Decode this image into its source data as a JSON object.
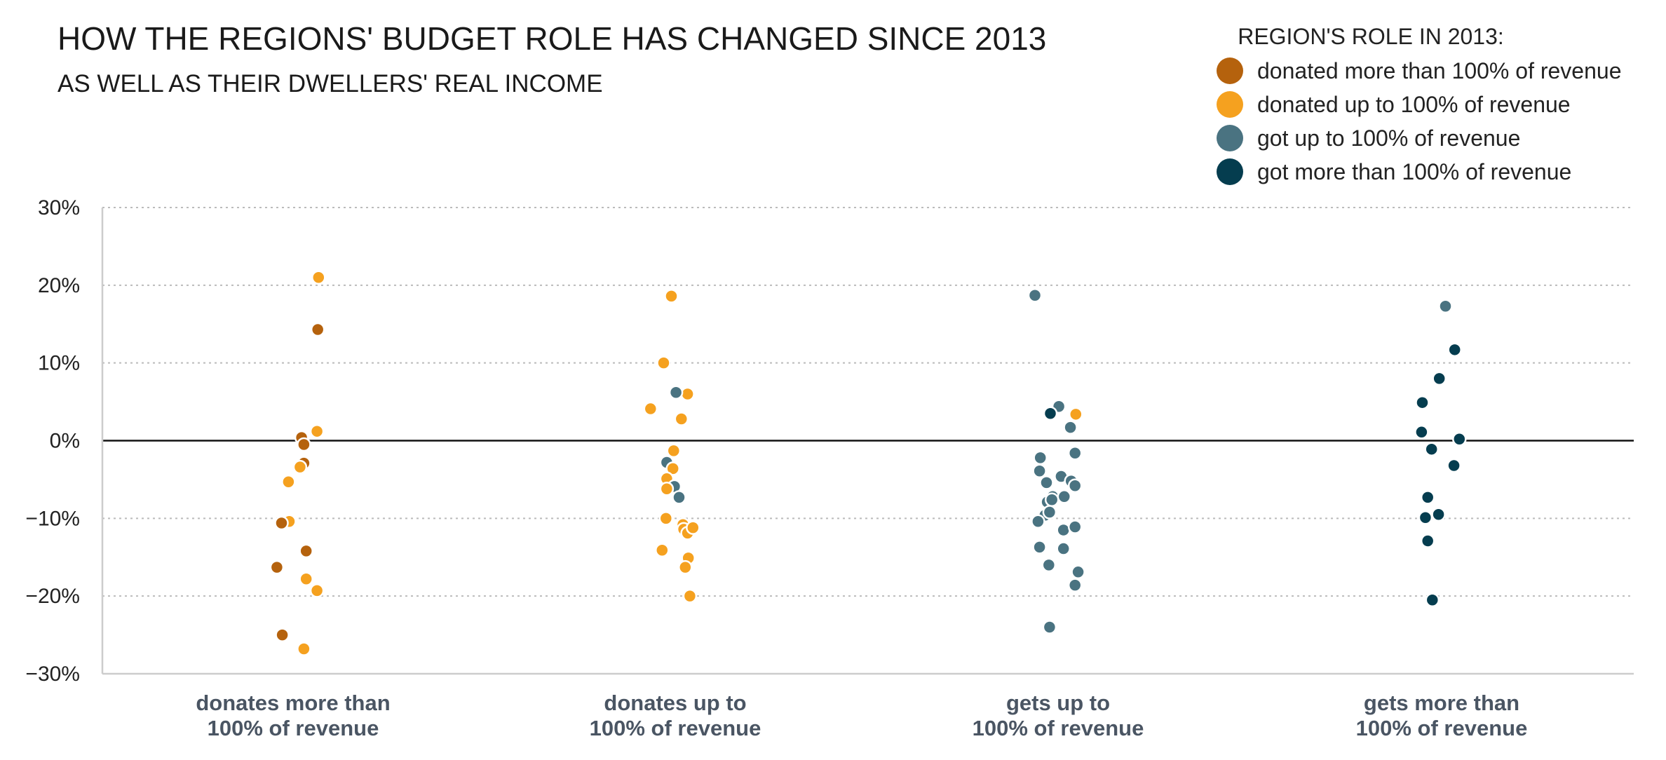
{
  "title": "HOW THE REGIONS' BUDGET ROLE HAS CHANGED SINCE 2013",
  "subtitle": "AS WELL AS THEIR DWELLERS' REAL INCOME",
  "legend": {
    "title": "REGION'S ROLE IN 2013:",
    "items": [
      {
        "label": "donated more than 100% of revenue",
        "color": "#b5620d"
      },
      {
        "label": "donated up to 100% of revenue",
        "color": "#f5a11f"
      },
      {
        "label": "got up to 100% of revenue",
        "color": "#4a7381"
      },
      {
        "label": "got more than 100% of revenue",
        "color": "#053d4f"
      }
    ]
  },
  "chart_data": {
    "type": "scatter",
    "title": "HOW THE REGIONS' BUDGET ROLE HAS CHANGED SINCE 2013",
    "subtitle": "AS WELL AS THEIR DWELLERS' REAL INCOME",
    "categories": [
      [
        "donates more than",
        "100% of revenue"
      ],
      [
        "donates up to",
        "100% of revenue"
      ],
      [
        "gets up to",
        "100% of revenue"
      ],
      [
        "gets more than",
        "100% of revenue"
      ]
    ],
    "ylim": [
      -30,
      30
    ],
    "yticks": [
      30,
      20,
      10,
      0,
      -10,
      -20,
      -30
    ],
    "ytick_labels": [
      "30%",
      "20%",
      "10%",
      "0%",
      "−10%",
      "−20%",
      "−30%"
    ],
    "grid": true,
    "legend_position": "top-right",
    "points": [
      {
        "cat": 0,
        "j": 0.33,
        "y": 21.0,
        "s": 1
      },
      {
        "cat": 0,
        "j": 0.32,
        "y": 14.3,
        "s": 0
      },
      {
        "cat": 0,
        "j": 0.31,
        "y": 1.2,
        "s": 1
      },
      {
        "cat": 0,
        "j": 0.11,
        "y": 0.4,
        "s": 0
      },
      {
        "cat": 0,
        "j": 0.14,
        "y": -0.5,
        "s": 0
      },
      {
        "cat": 0,
        "j": 0.14,
        "y": -2.9,
        "s": 0
      },
      {
        "cat": 0,
        "j": 0.09,
        "y": -3.4,
        "s": 1
      },
      {
        "cat": 0,
        "j": -0.06,
        "y": -5.3,
        "s": 1
      },
      {
        "cat": 0,
        "j": -0.05,
        "y": -10.4,
        "s": 1
      },
      {
        "cat": 0,
        "j": -0.15,
        "y": -10.6,
        "s": 0
      },
      {
        "cat": 0,
        "j": 0.17,
        "y": -14.2,
        "s": 0
      },
      {
        "cat": 0,
        "j": -0.21,
        "y": -16.3,
        "s": 0
      },
      {
        "cat": 0,
        "j": 0.17,
        "y": -17.8,
        "s": 1
      },
      {
        "cat": 0,
        "j": 0.31,
        "y": -19.3,
        "s": 1
      },
      {
        "cat": 0,
        "j": -0.14,
        "y": -25.0,
        "s": 0
      },
      {
        "cat": 0,
        "j": 0.14,
        "y": -26.8,
        "s": 1
      },
      {
        "cat": 1,
        "j": -0.05,
        "y": 18.6,
        "s": 1
      },
      {
        "cat": 1,
        "j": -0.15,
        "y": 10.0,
        "s": 1
      },
      {
        "cat": 1,
        "j": 0.16,
        "y": 6.0,
        "s": 1
      },
      {
        "cat": 1,
        "j": 0.01,
        "y": 6.2,
        "s": 2
      },
      {
        "cat": 1,
        "j": -0.32,
        "y": 4.1,
        "s": 1
      },
      {
        "cat": 1,
        "j": 0.08,
        "y": 2.8,
        "s": 1
      },
      {
        "cat": 1,
        "j": -0.02,
        "y": -1.3,
        "s": 1
      },
      {
        "cat": 1,
        "j": -0.11,
        "y": -2.8,
        "s": 2
      },
      {
        "cat": 1,
        "j": -0.03,
        "y": -3.6,
        "s": 1
      },
      {
        "cat": 1,
        "j": -0.11,
        "y": -4.9,
        "s": 1
      },
      {
        "cat": 1,
        "j": -0.01,
        "y": -5.9,
        "s": 2
      },
      {
        "cat": 1,
        "j": -0.11,
        "y": -6.2,
        "s": 1
      },
      {
        "cat": 1,
        "j": 0.05,
        "y": -7.3,
        "s": 2
      },
      {
        "cat": 1,
        "j": -0.12,
        "y": -10.0,
        "s": 1
      },
      {
        "cat": 1,
        "j": 0.1,
        "y": -10.8,
        "s": 1
      },
      {
        "cat": 1,
        "j": 0.11,
        "y": -11.4,
        "s": 1
      },
      {
        "cat": 1,
        "j": 0.16,
        "y": -11.9,
        "s": 1
      },
      {
        "cat": 1,
        "j": 0.23,
        "y": -11.2,
        "s": 1
      },
      {
        "cat": 1,
        "j": -0.17,
        "y": -14.1,
        "s": 1
      },
      {
        "cat": 1,
        "j": 0.17,
        "y": -15.1,
        "s": 1
      },
      {
        "cat": 1,
        "j": 0.13,
        "y": -16.3,
        "s": 1
      },
      {
        "cat": 1,
        "j": 0.19,
        "y": -20.0,
        "s": 1
      },
      {
        "cat": 2,
        "j": -0.3,
        "y": 18.7,
        "s": 2
      },
      {
        "cat": 2,
        "j": 0.01,
        "y": 4.4,
        "s": 2
      },
      {
        "cat": 2,
        "j": -0.1,
        "y": 3.5,
        "s": 3
      },
      {
        "cat": 2,
        "j": 0.23,
        "y": 3.4,
        "s": 1
      },
      {
        "cat": 2,
        "j": 0.16,
        "y": 1.7,
        "s": 2
      },
      {
        "cat": 2,
        "j": 0.22,
        "y": -1.6,
        "s": 2
      },
      {
        "cat": 2,
        "j": -0.23,
        "y": -2.2,
        "s": 2
      },
      {
        "cat": 2,
        "j": -0.24,
        "y": -3.9,
        "s": 2
      },
      {
        "cat": 2,
        "j": 0.04,
        "y": -4.6,
        "s": 2
      },
      {
        "cat": 2,
        "j": 0.17,
        "y": -5.2,
        "s": 2
      },
      {
        "cat": 2,
        "j": -0.15,
        "y": -5.4,
        "s": 2
      },
      {
        "cat": 2,
        "j": 0.22,
        "y": -5.8,
        "s": 2
      },
      {
        "cat": 2,
        "j": -0.07,
        "y": -7.2,
        "s": 2
      },
      {
        "cat": 2,
        "j": 0.08,
        "y": -7.2,
        "s": 2
      },
      {
        "cat": 2,
        "j": -0.14,
        "y": -7.9,
        "s": 2
      },
      {
        "cat": 2,
        "j": -0.08,
        "y": -7.6,
        "s": 2
      },
      {
        "cat": 2,
        "j": -0.17,
        "y": -9.6,
        "s": 2
      },
      {
        "cat": 2,
        "j": -0.11,
        "y": -9.2,
        "s": 2
      },
      {
        "cat": 2,
        "j": -0.26,
        "y": -10.4,
        "s": 2
      },
      {
        "cat": 2,
        "j": 0.07,
        "y": -11.5,
        "s": 2
      },
      {
        "cat": 2,
        "j": 0.22,
        "y": -11.1,
        "s": 2
      },
      {
        "cat": 2,
        "j": -0.24,
        "y": -13.7,
        "s": 2
      },
      {
        "cat": 2,
        "j": 0.07,
        "y": -13.9,
        "s": 2
      },
      {
        "cat": 2,
        "j": -0.12,
        "y": -16.0,
        "s": 2
      },
      {
        "cat": 2,
        "j": 0.26,
        "y": -16.9,
        "s": 2
      },
      {
        "cat": 2,
        "j": 0.22,
        "y": -18.6,
        "s": 2
      },
      {
        "cat": 2,
        "j": -0.11,
        "y": -24.0,
        "s": 2
      },
      {
        "cat": 3,
        "j": 0.05,
        "y": 17.3,
        "s": 2
      },
      {
        "cat": 3,
        "j": 0.17,
        "y": 11.7,
        "s": 3
      },
      {
        "cat": 3,
        "j": -0.03,
        "y": 8.0,
        "s": 3
      },
      {
        "cat": 3,
        "j": -0.25,
        "y": 4.9,
        "s": 3
      },
      {
        "cat": 3,
        "j": -0.26,
        "y": 1.1,
        "s": 3
      },
      {
        "cat": 3,
        "j": 0.23,
        "y": 0.2,
        "s": 3
      },
      {
        "cat": 3,
        "j": -0.13,
        "y": -1.1,
        "s": 3
      },
      {
        "cat": 3,
        "j": 0.16,
        "y": -3.2,
        "s": 3
      },
      {
        "cat": 3,
        "j": -0.18,
        "y": -7.3,
        "s": 3
      },
      {
        "cat": 3,
        "j": -0.04,
        "y": -9.5,
        "s": 3
      },
      {
        "cat": 3,
        "j": -0.21,
        "y": -9.9,
        "s": 3
      },
      {
        "cat": 3,
        "j": -0.18,
        "y": -12.9,
        "s": 3
      },
      {
        "cat": 3,
        "j": -0.12,
        "y": -20.5,
        "s": 3
      }
    ]
  }
}
